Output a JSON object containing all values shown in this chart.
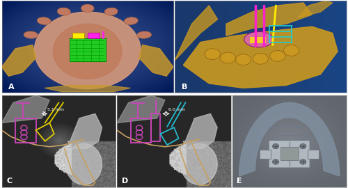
{
  "figure_width": 5.0,
  "figure_height": 2.7,
  "dpi": 100,
  "background_color": "#ffffff",
  "panel_labels": [
    "A",
    "B",
    "C",
    "D",
    "E"
  ],
  "label_color": "#ffffff",
  "label_fontsize": 8,
  "panel_A": {
    "bg_color": "#2a6090",
    "skull_color": "#c8856a",
    "palate_color": "#d4987a",
    "tooth_color": "#c07860",
    "gold_color": "#c8982a",
    "green_appliance": "#22cc22",
    "yellow_bushing": "#ffee00",
    "magenta_bushing": "#ff22ee"
  },
  "panel_B": {
    "bg_color": "#2060a0",
    "gold_color": "#c89820",
    "magenta_pin": "#ff22cc",
    "yellow_pin": "#ffee00",
    "teal_appliance": "#22cccc",
    "pink_sphere": "#dd66bb"
  },
  "panel_C": {
    "bg_color": "#383838",
    "measurement_text": "5.1 mm",
    "magenta": "#cc44bb",
    "yellow": "#ddcc00",
    "tan": "#c8a060"
  },
  "panel_D": {
    "bg_color": "#383838",
    "measurement_text": "6.0 mm",
    "magenta": "#cc44bb",
    "teal": "#22bbcc",
    "tan": "#c8a060"
  },
  "panel_E": {
    "bg_color": "#606070",
    "palate_color": "#8090a0",
    "metal_color": "#b0b8c0",
    "dark_metal": "#707880"
  }
}
